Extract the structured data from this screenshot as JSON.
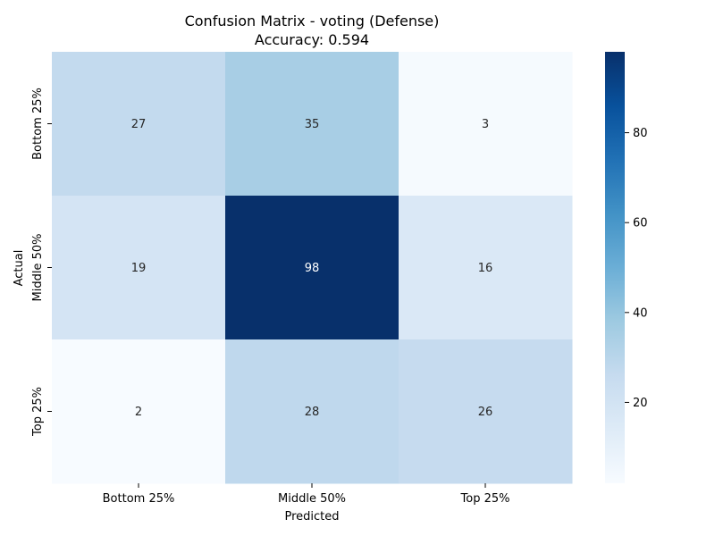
{
  "chart_data": {
    "type": "heatmap",
    "title": "Confusion Matrix - voting (Defense)",
    "subtitle": "Accuracy: 0.594",
    "xlabel": "Predicted",
    "ylabel": "Actual",
    "x_categories": [
      "Bottom 25%",
      "Middle 50%",
      "Top 25%"
    ],
    "y_categories": [
      "Bottom 25%",
      "Middle 50%",
      "Top 25%"
    ],
    "values": [
      [
        27,
        35,
        3
      ],
      [
        19,
        98,
        16
      ],
      [
        2,
        28,
        26
      ]
    ],
    "colormap": "Blues",
    "color_range": [
      2,
      98
    ],
    "colorbar_ticks": [
      20,
      40,
      60,
      80
    ],
    "colorbar_tick_labels": [
      "20",
      "40",
      "60",
      "80"
    ]
  }
}
